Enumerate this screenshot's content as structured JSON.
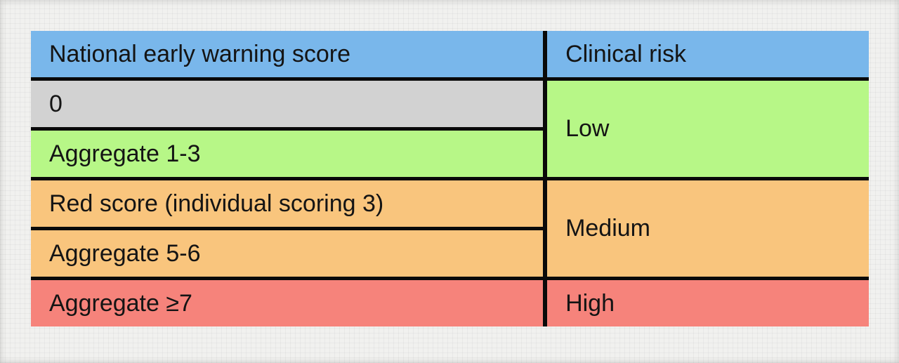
{
  "figure": {
    "description": "National early warning score to clinical risk mapping table",
    "header": {
      "score_label": "National early warning score",
      "risk_label": "Clinical risk"
    },
    "rows": [
      {
        "score": "0",
        "risk": "Low",
        "risk_rowspan": 2
      },
      {
        "score": "Aggregate 1-3"
      },
      {
        "score": "Red score (individual scoring 3)",
        "risk": "Medium",
        "risk_rowspan": 2
      },
      {
        "score": "Aggregate 5-6"
      },
      {
        "score": "Aggregate ≥7",
        "risk": "High",
        "risk_rowspan": 1
      }
    ],
    "colors": {
      "header_bg": "#79b7eb",
      "score0_bg": "#d2d2d2",
      "low_bg": "#b7f787",
      "medium_bg": "#f9c57d",
      "high_bg": "#f6837b",
      "red_text": "#e32313",
      "grid_line": "#0a0a0a",
      "page_bg": "#f1f1ef"
    }
  }
}
